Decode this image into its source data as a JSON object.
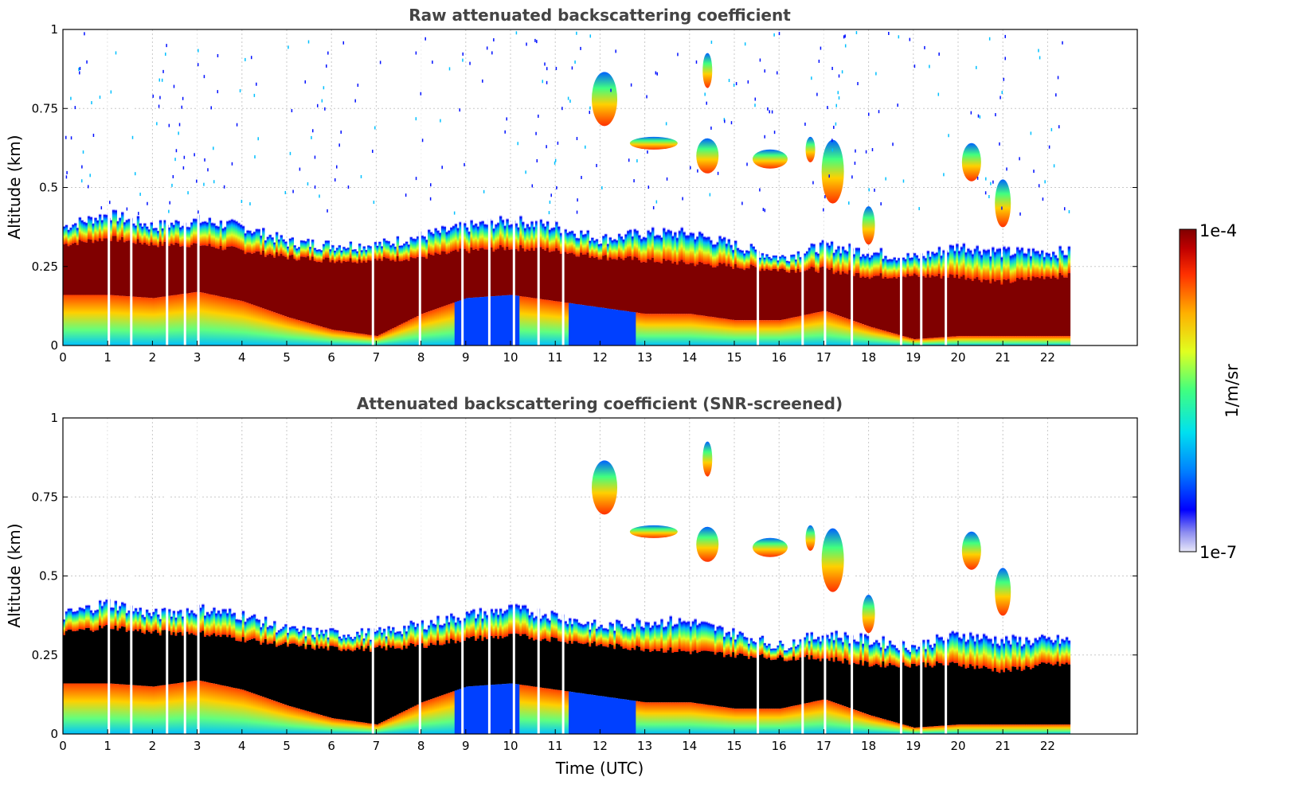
{
  "chart_data": [
    {
      "type": "heatmap",
      "title": "Raw attenuated backscattering coefficient",
      "xlabel": "",
      "ylabel": "Altitude (km)",
      "xlim": [
        0,
        24
      ],
      "ylim": [
        0,
        1
      ],
      "x_ticks": [
        "0",
        "1",
        "2",
        "3",
        "4",
        "5",
        "6",
        "7",
        "8",
        "9",
        "10",
        "11",
        "12",
        "13",
        "14",
        "15",
        "16",
        "17",
        "18",
        "19",
        "20",
        "21",
        "22"
      ],
      "y_ticks": [
        "0",
        "0.25",
        "0.5",
        "0.75",
        "1"
      ],
      "grid": true,
      "data_end_time": 22.5,
      "saturated_color": "#800000",
      "layers": {
        "surface_layer_top_km": [
          [
            0,
            0.38
          ],
          [
            1,
            0.42
          ],
          [
            2,
            0.38
          ],
          [
            3,
            0.4
          ],
          [
            4,
            0.38
          ],
          [
            5,
            0.33
          ],
          [
            6,
            0.32
          ],
          [
            7,
            0.32
          ],
          [
            8,
            0.35
          ],
          [
            9,
            0.38
          ],
          [
            10,
            0.4
          ],
          [
            11,
            0.38
          ],
          [
            12,
            0.34
          ],
          [
            13,
            0.36
          ],
          [
            14,
            0.36
          ],
          [
            15,
            0.32
          ],
          [
            16,
            0.28
          ],
          [
            17,
            0.32
          ],
          [
            18,
            0.3
          ],
          [
            19,
            0.28
          ],
          [
            20,
            0.32
          ],
          [
            21,
            0.3
          ],
          [
            22,
            0.3
          ],
          [
            22.5,
            0.3
          ]
        ],
        "dense_core_top_km": [
          [
            0,
            0.32
          ],
          [
            1,
            0.34
          ],
          [
            2,
            0.32
          ],
          [
            3,
            0.32
          ],
          [
            4,
            0.3
          ],
          [
            5,
            0.28
          ],
          [
            6,
            0.27
          ],
          [
            7,
            0.27
          ],
          [
            8,
            0.28
          ],
          [
            9,
            0.3
          ],
          [
            10,
            0.31
          ],
          [
            11,
            0.3
          ],
          [
            12,
            0.28
          ],
          [
            13,
            0.27
          ],
          [
            14,
            0.26
          ],
          [
            15,
            0.25
          ],
          [
            16,
            0.24
          ],
          [
            17,
            0.24
          ],
          [
            18,
            0.22
          ],
          [
            19,
            0.22
          ],
          [
            20,
            0.22
          ],
          [
            21,
            0.2
          ],
          [
            22,
            0.22
          ],
          [
            22.5,
            0.22
          ]
        ],
        "dense_core_bottom_km": [
          [
            0,
            0.16
          ],
          [
            1,
            0.16
          ],
          [
            2,
            0.15
          ],
          [
            3,
            0.17
          ],
          [
            4,
            0.14
          ],
          [
            5,
            0.09
          ],
          [
            6,
            0.05
          ],
          [
            7,
            0.03
          ],
          [
            8,
            0.1
          ],
          [
            9,
            0.15
          ],
          [
            10,
            0.16
          ],
          [
            11,
            0.14
          ],
          [
            12,
            0.12
          ],
          [
            13,
            0.1
          ],
          [
            14,
            0.1
          ],
          [
            15,
            0.08
          ],
          [
            16,
            0.08
          ],
          [
            17,
            0.11
          ],
          [
            18,
            0.06
          ],
          [
            19,
            0.02
          ],
          [
            20,
            0.03
          ],
          [
            21,
            0.03
          ],
          [
            22,
            0.03
          ],
          [
            22.5,
            0.03
          ]
        ]
      }
    },
    {
      "type": "heatmap",
      "title": "Attenuated backscattering coefficient (SNR-screened)",
      "xlabel": "Time (UTC)",
      "ylabel": "Altitude (km)",
      "xlim": [
        0,
        24
      ],
      "ylim": [
        0,
        1
      ],
      "x_ticks": [
        "0",
        "1",
        "2",
        "3",
        "4",
        "5",
        "6",
        "7",
        "8",
        "9",
        "10",
        "11",
        "12",
        "13",
        "14",
        "15",
        "16",
        "17",
        "18",
        "19",
        "20",
        "21",
        "22"
      ],
      "y_ticks": [
        "0",
        "0.25",
        "0.5",
        "0.75",
        "1"
      ],
      "grid": true,
      "data_end_time": 22.5,
      "saturated_color": "#000000"
    }
  ],
  "colorbar": {
    "label": "1/m/sr",
    "max_label": "1e-4",
    "min_label": "1e-7",
    "scale": "log",
    "range": [
      1e-07,
      0.0001
    ],
    "colors": [
      "#e8e8f8",
      "#8c8cf0",
      "#0000ff",
      "#0080ff",
      "#00e0f0",
      "#40ff80",
      "#e0ff20",
      "#ffb000",
      "#ff3000",
      "#c00000",
      "#800000"
    ]
  }
}
